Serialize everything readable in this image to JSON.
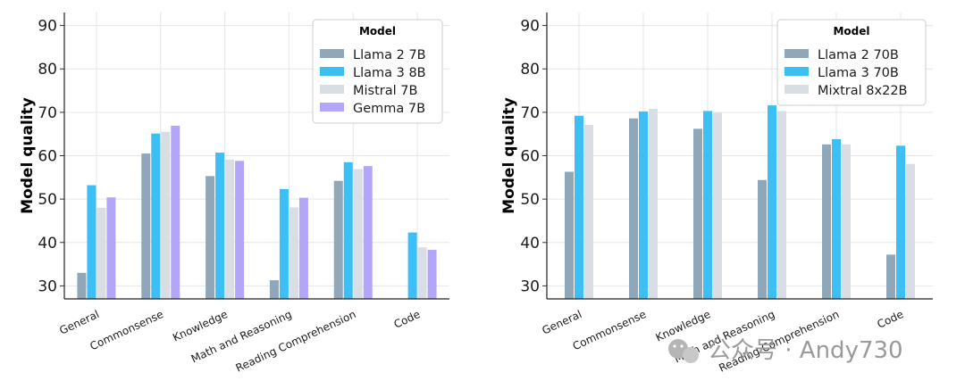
{
  "chart_data": [
    {
      "type": "bar",
      "ylabel": "Model quality",
      "ylim": [
        27,
        93
      ],
      "yticks": [
        30,
        40,
        50,
        60,
        70,
        80,
        90
      ],
      "categories": [
        "General",
        "Commonsense",
        "Knowledge",
        "Math and Reasoning",
        "Reading Comprehension",
        "Code"
      ],
      "legend_title": "Model",
      "legend_position": "top-right",
      "grid": true,
      "series": [
        {
          "name": "Llama 2 7B",
          "color": "#8fa7b9",
          "values": [
            33.0,
            60.5,
            55.3,
            31.3,
            54.2,
            null
          ]
        },
        {
          "name": "Llama 3 8B",
          "color": "#3cbff4",
          "values": [
            53.2,
            65.1,
            60.7,
            52.3,
            58.5,
            42.3
          ]
        },
        {
          "name": "Mistral 7B",
          "color": "#d8dee3",
          "values": [
            48.0,
            65.5,
            59.1,
            48.1,
            56.9,
            38.9
          ]
        },
        {
          "name": "Gemma 7B",
          "color": "#b3a6f8",
          "values": [
            50.4,
            66.9,
            58.8,
            50.3,
            57.6,
            38.3
          ]
        }
      ]
    },
    {
      "type": "bar",
      "ylabel": "Model quality",
      "ylim": [
        27,
        93
      ],
      "yticks": [
        30,
        40,
        50,
        60,
        70,
        80,
        90
      ],
      "categories": [
        "General",
        "Commonsense",
        "Knowledge",
        "Math and Reasoning",
        "Reading Comprehension",
        "Code"
      ],
      "legend_title": "Model",
      "legend_position": "top-right",
      "grid": true,
      "series": [
        {
          "name": "Llama 2 70B",
          "color": "#8fa7b9",
          "values": [
            56.3,
            68.6,
            66.2,
            54.4,
            62.6,
            37.2
          ]
        },
        {
          "name": "Llama 3 70B",
          "color": "#3cbff4",
          "values": [
            69.2,
            70.2,
            70.3,
            71.6,
            63.8,
            62.3
          ]
        },
        {
          "name": "Mixtral 8x22B",
          "color": "#d8dee3",
          "values": [
            67.1,
            70.8,
            69.9,
            70.3,
            62.6,
            58.1
          ]
        }
      ]
    }
  ],
  "watermark": {
    "icon": "wechat-icon",
    "text": "公众号 · Andy730"
  }
}
